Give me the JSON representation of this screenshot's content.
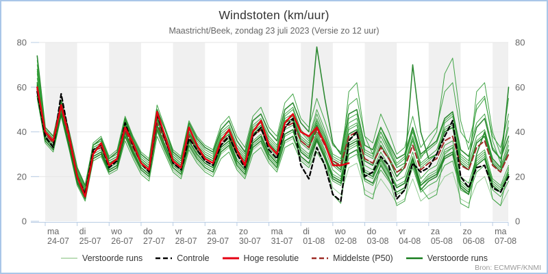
{
  "header": {
    "title": "Windstoten (km/uur)",
    "subtitle": "Maastricht/Beek, zondag 23 juli 2023 (Versie zo 12 uur)"
  },
  "source": "Bron: ECMWF/KNMI",
  "legend": {
    "items": [
      {
        "label": "Verstoorde runs",
        "swatch": "line",
        "color": "#a5d2a0",
        "width": 1.5
      },
      {
        "label": "Controle",
        "swatch": "dashed",
        "color": "#000000",
        "width": 2.5
      },
      {
        "label": "Hoge resolutie",
        "swatch": "line",
        "color": "#e50012",
        "width": 3
      },
      {
        "label": "Middelste (P50)",
        "swatch": "dashed",
        "color": "#9d2a24",
        "width": 2.5
      },
      {
        "label": "Verstoorde runs",
        "swatch": "line",
        "color": "#177d1d",
        "width": 2.5
      }
    ]
  },
  "colors": {
    "band": "#f0f0f0",
    "grid": "#e6e6e6",
    "axis": "#b8cce4",
    "tick_label": "#666666",
    "ensemble": "#2e9b33",
    "ensemble_dark": "#177d1d",
    "ensemble_light": "#85c585",
    "control": "#000000",
    "hres": "#e50012",
    "p50": "#9d2a24"
  },
  "chart_data": {
    "type": "line",
    "title": "Windstoten (km/uur)",
    "subtitle": "Maastricht/Beek, zondag 23 juli 2023 (Versie zo 12 uur)",
    "ylabel": "",
    "ylim": [
      0,
      80
    ],
    "yticks": [
      0,
      20,
      40,
      60,
      80
    ],
    "grid": "horizontal",
    "legend_position": "bottom",
    "x_start": "zo 23-07 18:00",
    "x_step_hours": 6,
    "day_ticks": [
      {
        "dow": "ma",
        "date": "24-07",
        "shaded": true
      },
      {
        "dow": "di",
        "date": "25-07",
        "shaded": false
      },
      {
        "dow": "wo",
        "date": "26-07",
        "shaded": true
      },
      {
        "dow": "do",
        "date": "27-07",
        "shaded": false
      },
      {
        "dow": "vr",
        "date": "28-07",
        "shaded": true
      },
      {
        "dow": "za",
        "date": "29-07",
        "shaded": false
      },
      {
        "dow": "zo",
        "date": "30-07",
        "shaded": true
      },
      {
        "dow": "ma",
        "date": "31-07",
        "shaded": false
      },
      {
        "dow": "di",
        "date": "01-08",
        "shaded": true
      },
      {
        "dow": "wo",
        "date": "02-08",
        "shaded": false
      },
      {
        "dow": "do",
        "date": "03-08",
        "shaded": true
      },
      {
        "dow": "vr",
        "date": "04-08",
        "shaded": false
      },
      {
        "dow": "za",
        "date": "05-08",
        "shaded": true
      },
      {
        "dow": "zo",
        "date": "06-08",
        "shaded": false
      },
      {
        "dow": "ma",
        "date": "07-08",
        "shaded": true
      }
    ],
    "series": [
      {
        "name": "Controle",
        "style": "dashed",
        "color": "#000000",
        "values": [
          58,
          38,
          33,
          57,
          38,
          20,
          12,
          32,
          34,
          24,
          27,
          44,
          34,
          26,
          22,
          48,
          37,
          26,
          23,
          37,
          32,
          27,
          25,
          34,
          38,
          30,
          24,
          38,
          42,
          32,
          28,
          42,
          46,
          25,
          19,
          33,
          25,
          12,
          9,
          36,
          40,
          20,
          22,
          29,
          25,
          10,
          14,
          26,
          22,
          24,
          30,
          38,
          45,
          20,
          15,
          24,
          25,
          15,
          13,
          20
        ]
      },
      {
        "name": "Hoge resolutie",
        "style": "solid",
        "color": "#e50012",
        "values": [
          60,
          40,
          36,
          52,
          38,
          20,
          11,
          30,
          35,
          25,
          28,
          42,
          35,
          26,
          23,
          49,
          38,
          27,
          24,
          42,
          34,
          28,
          26,
          36,
          41,
          32,
          25,
          40,
          45,
          34,
          30,
          44,
          48,
          40,
          38,
          42,
          35,
          25,
          25,
          26
        ]
      },
      {
        "name": "Middelste (P50)",
        "style": "dashed",
        "color": "#9d2a24",
        "values": [
          59,
          39,
          35,
          51,
          36,
          20,
          13,
          31,
          33,
          25,
          27,
          41,
          33,
          26,
          23,
          44,
          36,
          27,
          24,
          38,
          32,
          28,
          26,
          35,
          38,
          30,
          26,
          38,
          41,
          34,
          30,
          42,
          44,
          36,
          33,
          41,
          34,
          27,
          25,
          38,
          40,
          28,
          26,
          33,
          28,
          22,
          24,
          34,
          23,
          26,
          28,
          36,
          38,
          25,
          23,
          33,
          36,
          25,
          22,
          30
        ]
      }
    ],
    "ensemble": {
      "name": "Verstoorde runs",
      "members": [
        [
          74,
          42,
          38,
          54,
          40,
          24,
          16,
          34,
          37,
          28,
          31,
          46,
          37,
          30,
          27,
          50,
          41,
          31,
          28,
          44,
          37,
          33,
          31,
          41,
          45,
          36,
          31,
          45,
          48,
          40,
          36,
          50,
          53,
          44,
          40,
          78,
          55,
          35,
          30,
          48,
          50,
          34,
          32,
          42,
          35,
          28,
          30,
          42,
          30,
          33,
          36,
          46,
          49,
          32,
          29,
          42,
          46,
          32,
          28,
          38
        ],
        [
          55,
          35,
          31,
          47,
          32,
          16,
          9,
          27,
          29,
          21,
          23,
          36,
          28,
          21,
          18,
          38,
          30,
          22,
          19,
          32,
          26,
          22,
          20,
          28,
          31,
          23,
          19,
          30,
          33,
          26,
          22,
          33,
          35,
          27,
          24,
          31,
          25,
          18,
          16,
          28,
          30,
          18,
          16,
          23,
          18,
          12,
          14,
          24,
          13,
          16,
          18,
          25,
          27,
          14,
          12,
          22,
          25,
          14,
          11,
          18
        ],
        [
          70,
          41,
          37,
          53,
          39,
          23,
          15,
          35,
          38,
          29,
          32,
          47,
          38,
          31,
          28,
          52,
          42,
          32,
          29,
          45,
          38,
          34,
          32,
          43,
          47,
          38,
          33,
          47,
          51,
          42,
          38,
          53,
          57,
          46,
          42,
          55,
          45,
          34,
          31,
          52,
          55,
          38,
          35,
          48,
          40,
          30,
          33,
          47,
          33,
          38,
          42,
          58,
          62,
          40,
          35,
          50,
          55,
          38,
          33,
          48
        ],
        [
          58,
          36,
          32,
          48,
          33,
          17,
          10,
          28,
          30,
          22,
          24,
          38,
          29,
          22,
          19,
          40,
          31,
          23,
          20,
          33,
          27,
          23,
          21,
          30,
          33,
          24,
          20,
          32,
          35,
          27,
          23,
          35,
          37,
          28,
          25,
          33,
          26,
          15,
          12,
          24,
          26,
          14,
          12,
          19,
          14,
          8,
          10,
          19,
          9,
          12,
          14,
          20,
          22,
          10,
          8,
          17,
          20,
          10,
          7,
          14
        ],
        [
          68,
          41,
          37,
          52,
          38,
          22,
          14,
          33,
          35,
          27,
          29,
          44,
          35,
          28,
          25,
          47,
          38,
          29,
          26,
          40,
          34,
          30,
          28,
          38,
          41,
          32,
          28,
          41,
          44,
          36,
          32,
          46,
          48,
          38,
          35,
          46,
          38,
          28,
          26,
          42,
          44,
          30,
          28,
          38,
          31,
          24,
          26,
          38,
          26,
          29,
          32,
          42,
          44,
          28,
          25,
          58,
          62,
          40,
          30,
          55
        ],
        [
          62,
          39,
          35,
          50,
          36,
          21,
          13,
          32,
          34,
          26,
          28,
          43,
          34,
          27,
          24,
          46,
          37,
          28,
          25,
          39,
          33,
          29,
          27,
          36,
          39,
          31,
          27,
          39,
          42,
          35,
          31,
          44,
          46,
          36,
          33,
          43,
          35,
          26,
          23,
          39,
          41,
          27,
          25,
          34,
          28,
          20,
          24,
          70,
          40,
          28,
          30,
          40,
          42,
          26,
          23,
          35,
          38,
          26,
          22,
          32
        ],
        [
          66,
          40,
          36,
          51,
          37,
          22,
          14,
          34,
          36,
          28,
          30,
          45,
          36,
          29,
          26,
          48,
          39,
          30,
          27,
          42,
          35,
          31,
          29,
          39,
          42,
          33,
          29,
          42,
          45,
          37,
          33,
          47,
          50,
          40,
          36,
          48,
          39,
          29,
          27,
          44,
          46,
          31,
          29,
          40,
          32,
          25,
          28,
          40,
          28,
          34,
          40,
          66,
          73,
          45,
          32,
          44,
          48,
          33,
          28,
          42
        ],
        [
          57,
          37,
          33,
          49,
          34,
          18,
          11,
          29,
          31,
          23,
          25,
          39,
          31,
          24,
          21,
          42,
          33,
          25,
          22,
          35,
          29,
          25,
          23,
          32,
          35,
          26,
          22,
          34,
          37,
          29,
          25,
          38,
          40,
          31,
          28,
          38,
          30,
          21,
          19,
          32,
          34,
          21,
          19,
          27,
          21,
          15,
          17,
          28,
          16,
          20,
          22,
          30,
          33,
          17,
          14,
          26,
          29,
          17,
          14,
          22
        ],
        [
          64,
          40,
          36,
          50,
          37,
          21,
          13,
          33,
          35,
          26,
          28,
          44,
          35,
          27,
          24,
          46,
          37,
          28,
          25,
          41,
          34,
          30,
          28,
          37,
          40,
          32,
          28,
          40,
          43,
          35,
          31,
          45,
          47,
          37,
          34,
          44,
          36,
          27,
          24,
          58,
          62,
          38,
          30,
          40,
          33,
          24,
          26,
          37,
          25,
          28,
          30,
          41,
          43,
          27,
          24,
          36,
          39,
          27,
          23,
          34
        ],
        [
          72,
          42,
          38,
          53,
          39,
          23,
          15,
          34,
          36,
          27,
          29,
          45,
          36,
          28,
          25,
          47,
          38,
          29,
          26,
          40,
          33,
          29,
          27,
          36,
          39,
          30,
          26,
          38,
          41,
          33,
          29,
          43,
          45,
          35,
          32,
          42,
          34,
          25,
          22,
          37,
          39,
          25,
          23,
          31,
          25,
          18,
          20,
          31,
          19,
          23,
          25,
          34,
          36,
          20,
          17,
          29,
          32,
          19,
          16,
          25
        ],
        [
          56,
          36,
          32,
          48,
          33,
          17,
          10,
          28,
          30,
          22,
          24,
          38,
          30,
          23,
          20,
          41,
          32,
          24,
          21,
          34,
          28,
          24,
          22,
          31,
          34,
          25,
          21,
          33,
          36,
          28,
          24,
          36,
          38,
          29,
          26,
          36,
          28,
          19,
          17,
          30,
          32,
          19,
          17,
          25,
          19,
          13,
          15,
          26,
          14,
          18,
          20,
          28,
          30,
          15,
          12,
          30,
          40,
          28,
          24,
          60
        ],
        [
          60,
          38,
          34,
          49,
          35,
          19,
          12,
          31,
          33,
          24,
          26,
          42,
          33,
          25,
          22,
          45,
          36,
          27,
          24,
          38,
          31,
          27,
          25,
          34,
          37,
          28,
          24,
          36,
          39,
          31,
          27,
          41,
          43,
          33,
          30,
          40,
          32,
          23,
          20,
          35,
          37,
          23,
          21,
          29,
          23,
          16,
          18,
          29,
          17,
          21,
          23,
          32,
          34,
          18,
          15,
          27,
          30,
          18,
          15,
          23
        ],
        [
          59,
          38,
          34,
          50,
          35,
          19,
          12,
          30,
          32,
          23,
          25,
          40,
          32,
          24,
          21,
          43,
          34,
          25,
          22,
          36,
          30,
          26,
          24,
          33,
          36,
          27,
          23,
          35,
          38,
          30,
          26,
          39,
          41,
          32,
          29,
          39,
          31,
          12,
          8,
          33,
          35,
          12,
          10,
          26,
          20,
          7,
          9,
          27,
          15,
          10,
          12,
          31,
          33,
          8,
          6,
          28,
          31,
          10,
          7,
          24
        ],
        [
          67,
          41,
          37,
          52,
          38,
          22,
          14,
          34,
          36,
          27,
          29,
          45,
          36,
          28,
          25,
          48,
          39,
          30,
          27,
          43,
          36,
          32,
          30,
          40,
          43,
          34,
          30,
          43,
          46,
          38,
          34,
          48,
          51,
          41,
          37,
          50,
          41,
          30,
          28,
          46,
          48,
          32,
          30,
          42,
          34,
          26,
          29,
          41,
          29,
          32,
          35,
          45,
          48,
          30,
          27,
          52,
          56,
          36,
          26,
          45
        ],
        [
          68,
          40,
          36,
          51,
          37,
          21,
          13,
          32,
          34,
          26,
          28,
          43,
          34,
          27,
          24,
          46,
          37,
          28,
          25,
          40,
          33,
          29,
          27,
          37,
          40,
          31,
          27,
          40,
          43,
          35,
          31,
          44,
          46,
          37,
          34,
          45,
          37,
          27,
          25,
          41,
          43,
          28,
          26,
          36,
          29,
          22,
          25,
          36,
          24,
          27,
          30,
          44,
          47,
          29,
          26,
          38,
          41,
          28,
          24,
          36
        ],
        [
          61,
          37,
          33,
          48,
          34,
          18,
          11,
          29,
          31,
          23,
          25,
          40,
          31,
          24,
          21,
          43,
          34,
          26,
          23,
          36,
          30,
          26,
          24,
          33,
          36,
          27,
          23,
          35,
          38,
          30,
          26,
          39,
          41,
          31,
          28,
          37,
          29,
          20,
          18,
          34,
          36,
          22,
          20,
          28,
          22,
          15,
          17,
          28,
          16,
          19,
          21,
          29,
          31,
          16,
          13,
          25,
          28,
          16,
          13,
          21
        ]
      ]
    }
  }
}
